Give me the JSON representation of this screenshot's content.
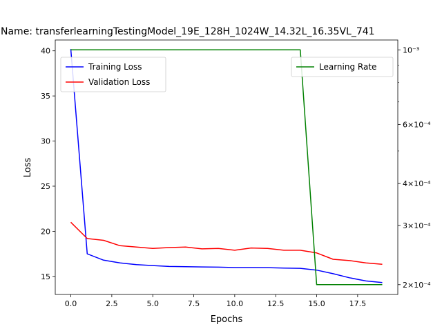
{
  "chart_data": {
    "type": "line",
    "title": "Name: transferlearningTestingModel_19E_128H_1024W_14.32L_16.35VL_741",
    "xlabel": "Epochs",
    "ylabel": "Loss",
    "x": [
      0,
      1,
      2,
      3,
      4,
      5,
      6,
      7,
      8,
      9,
      10,
      11,
      12,
      13,
      14,
      15,
      16,
      17,
      18,
      19
    ],
    "xlim": [
      -0.95,
      19.95
    ],
    "ylim": [
      13.0,
      41.2
    ],
    "x_ticks": [
      0.0,
      2.5,
      5.0,
      7.5,
      10.0,
      12.5,
      15.0,
      17.5
    ],
    "x_tick_labels": [
      "0.0",
      "2.5",
      "5.0",
      "7.5",
      "10.0",
      "12.5",
      "15.0",
      "17.5"
    ],
    "y_ticks": [
      15,
      20,
      25,
      30,
      35,
      40
    ],
    "y_tick_labels": [
      "15",
      "20",
      "25",
      "30",
      "35",
      "40"
    ],
    "y2_scale": "log",
    "y2lim": [
      0.000187,
      0.00107
    ],
    "y2_major_ticks": [
      0.0002,
      0.0003,
      0.0004,
      0.0006,
      0.001
    ],
    "y2_major_tick_labels": [
      "2×10⁻⁴",
      "3×10⁻⁴",
      "4×10⁻⁴",
      "6×10⁻⁴",
      "10⁻³"
    ],
    "y2_minor_ticks": [
      0.0005,
      0.0007,
      0.0008,
      0.0009
    ],
    "grid": false,
    "series": [
      {
        "name": "Training Loss",
        "axis": "left",
        "color": "#0000ff",
        "values": [
          40.2,
          17.5,
          16.8,
          16.5,
          16.3,
          16.2,
          16.1,
          16.08,
          16.05,
          16.03,
          15.98,
          15.98,
          15.97,
          15.93,
          15.9,
          15.7,
          15.3,
          14.85,
          14.5,
          14.32
        ]
      },
      {
        "name": "Validation Loss",
        "axis": "left",
        "color": "#ff0000",
        "values": [
          21.0,
          19.2,
          19.0,
          18.4,
          18.25,
          18.1,
          18.2,
          18.25,
          18.05,
          18.1,
          17.9,
          18.15,
          18.1,
          17.9,
          17.9,
          17.6,
          16.9,
          16.75,
          16.5,
          16.35
        ]
      },
      {
        "name": "Learning Rate",
        "axis": "right",
        "color": "#008000",
        "values": [
          0.001,
          0.001,
          0.001,
          0.001,
          0.001,
          0.001,
          0.001,
          0.001,
          0.001,
          0.001,
          0.001,
          0.001,
          0.001,
          0.001,
          0.001,
          0.0002,
          0.0002,
          0.0002,
          0.0002,
          0.0002
        ]
      }
    ],
    "legend_left": {
      "placement": "upper-left",
      "entries": [
        "Training Loss",
        "Validation Loss"
      ]
    },
    "legend_right": {
      "placement": "upper-right",
      "entries": [
        "Learning Rate"
      ]
    }
  }
}
